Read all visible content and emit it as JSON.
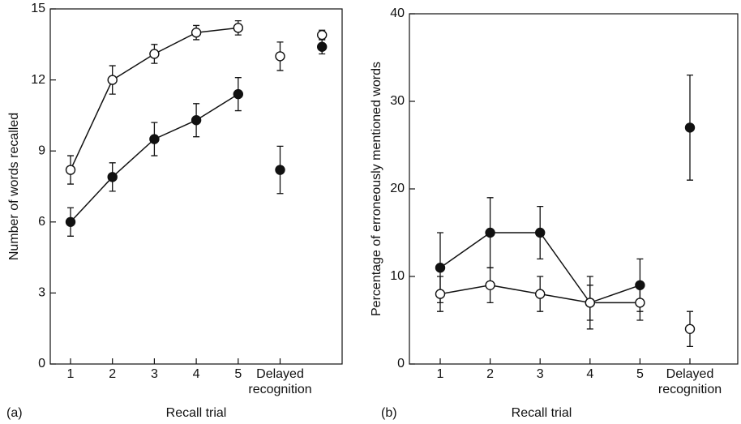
{
  "chart_data": [
    {
      "type": "line",
      "panel_label": "(a)",
      "ylabel": "Number of words recalled",
      "xlabel": "Recall trial",
      "categories": [
        "1",
        "2",
        "3",
        "4",
        "5",
        "Delayed recognition",
        null
      ],
      "ylim": [
        0,
        15
      ],
      "yticks": [
        0,
        3,
        6,
        9,
        12,
        15
      ],
      "series": [
        {
          "color": "#ffffff",
          "line": true,
          "values": [
            8.2,
            12,
            13.1,
            14,
            14.2,
            null,
            null
          ],
          "errors": [
            0.6,
            0.6,
            0.4,
            0.3,
            0.3,
            null,
            null
          ]
        },
        {
          "color": "#111111",
          "line": true,
          "values": [
            6.0,
            7.9,
            9.5,
            10.3,
            11.4,
            null,
            null
          ],
          "errors": [
            0.6,
            0.6,
            0.7,
            0.7,
            0.7,
            null,
            null
          ]
        },
        {
          "color": "#ffffff",
          "line": false,
          "values": [
            null,
            null,
            null,
            null,
            null,
            13.0,
            13.9
          ],
          "errors": [
            null,
            null,
            null,
            null,
            null,
            0.6,
            0.2
          ]
        },
        {
          "color": "#111111",
          "line": false,
          "values": [
            null,
            null,
            null,
            null,
            null,
            8.2,
            13.4
          ],
          "errors": [
            null,
            null,
            null,
            null,
            null,
            1.0,
            0.3
          ]
        }
      ]
    },
    {
      "type": "line",
      "panel_label": "(b)",
      "ylabel": "Percentage of erroneously mentioned words",
      "xlabel": "Recall trial",
      "categories": [
        "1",
        "2",
        "3",
        "4",
        "5",
        "Delayed recognition"
      ],
      "ylim": [
        0,
        40
      ],
      "yticks": [
        0,
        10,
        20,
        30,
        40
      ],
      "series": [
        {
          "color": "#111111",
          "line": true,
          "values": [
            11,
            15,
            15,
            7,
            9,
            null
          ],
          "errors": [
            4,
            4,
            3,
            3,
            3,
            null
          ]
        },
        {
          "color": "#ffffff",
          "line": true,
          "values": [
            8,
            9,
            8,
            7,
            7,
            null
          ],
          "errors": [
            2,
            2,
            2,
            2,
            2,
            null
          ]
        },
        {
          "color": "#111111",
          "line": false,
          "values": [
            null,
            null,
            null,
            null,
            null,
            27
          ],
          "errors": [
            null,
            null,
            null,
            null,
            null,
            6
          ]
        },
        {
          "color": "#ffffff",
          "line": false,
          "values": [
            null,
            null,
            null,
            null,
            null,
            4
          ],
          "errors": [
            null,
            null,
            null,
            null,
            null,
            2
          ]
        }
      ]
    }
  ]
}
